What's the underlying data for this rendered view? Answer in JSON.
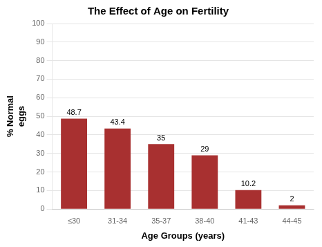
{
  "chart_data": {
    "type": "bar",
    "title": "The Effect of Age on Fertility",
    "xlabel": "Age Groups (years)",
    "ylabel": "% Normal\neggs",
    "categories": [
      "≤30",
      "31-34",
      "35-37",
      "38-40",
      "41-43",
      "44-45"
    ],
    "values": [
      48.7,
      43.4,
      35,
      29,
      10.2,
      2
    ],
    "color": "#A83030",
    "ylim": [
      0,
      100
    ],
    "yticks": [
      0,
      10,
      20,
      30,
      40,
      50,
      60,
      70,
      80,
      90,
      100
    ],
    "grid": true,
    "data_labels": true
  }
}
